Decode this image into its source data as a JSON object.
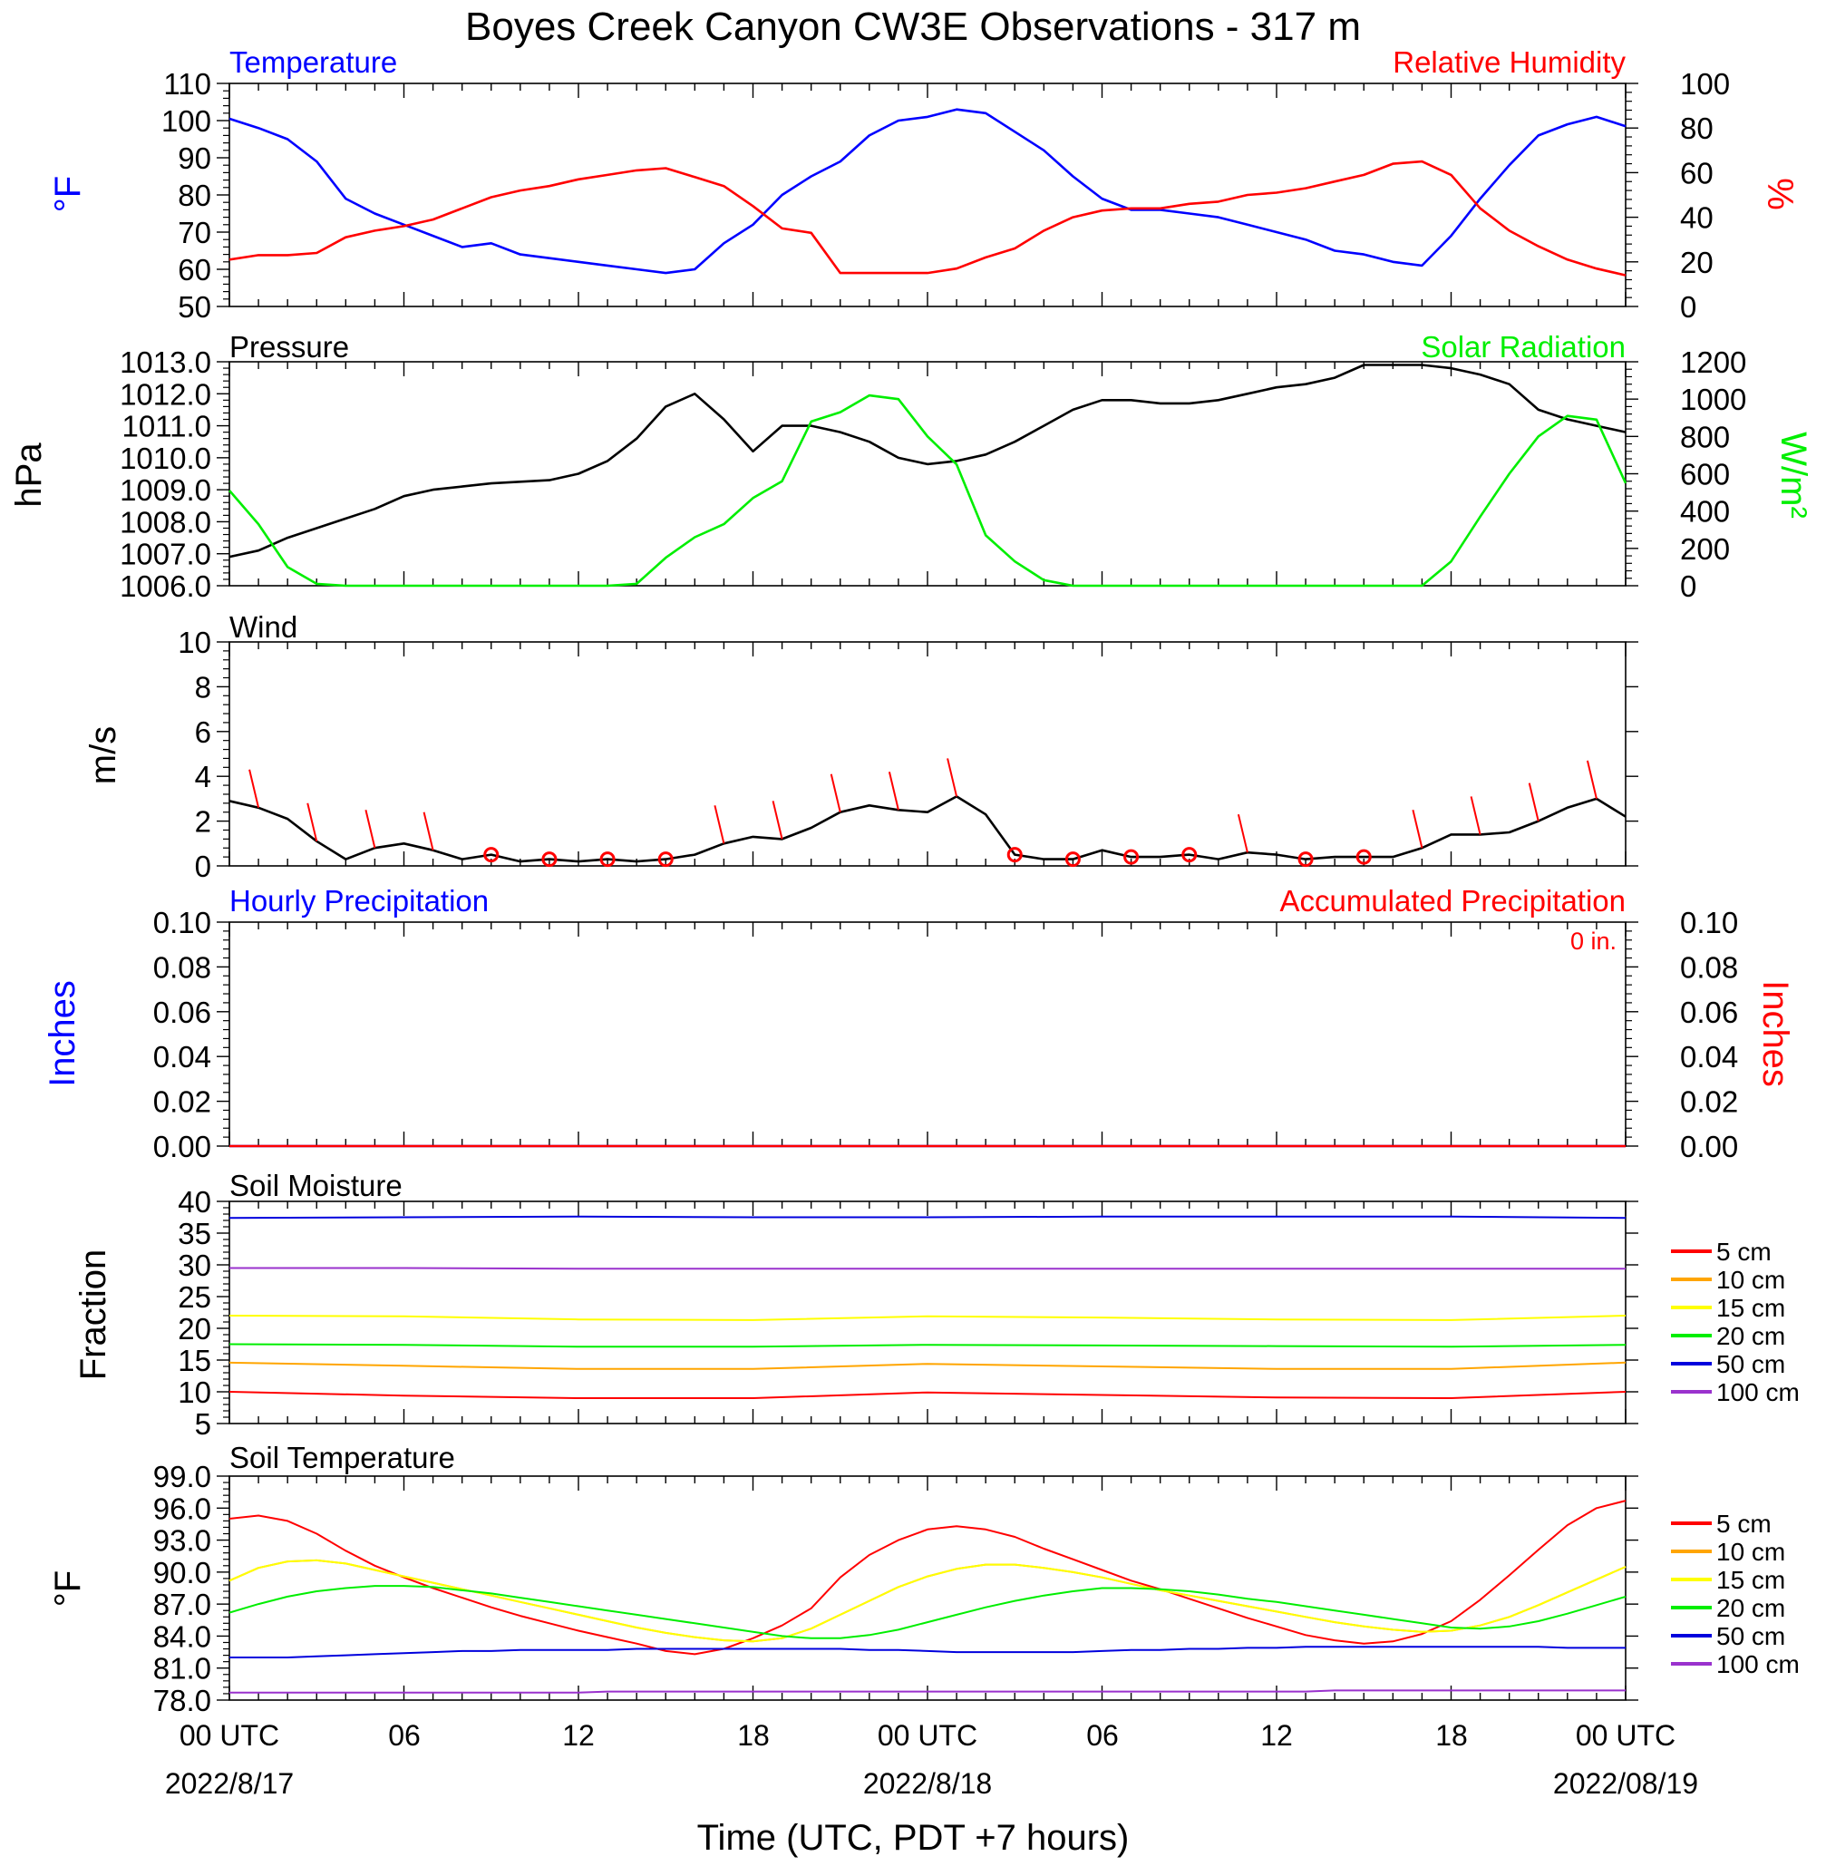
{
  "title": "Boyes Creek Canyon CW3E Observations - 317 m",
  "xlabel": "Time (UTC, PDT +7 hours)",
  "x_ticks": {
    "top": [
      "00 UTC",
      "06",
      "12",
      "18",
      "00 UTC",
      "06",
      "12",
      "18",
      "00 UTC"
    ],
    "dates": [
      "2022/8/17",
      "2022/8/18",
      "2022/08/19"
    ]
  },
  "colors": {
    "temperature": "#0000ff",
    "humidity": "#ff0000",
    "pressure": "#000000",
    "solar": "#00ee00",
    "wind": "#000000",
    "barb": "#ff0000",
    "hourly_precip": "#0000ff",
    "accum_precip": "#ff0000",
    "d5": "#ff0000",
    "d10": "#ffa500",
    "d15": "#ffff00",
    "d20": "#00ee00",
    "d50": "#0000dd",
    "d100": "#9a32cd"
  },
  "legend_labels": [
    "5 cm",
    "10 cm",
    "15 cm",
    "20 cm",
    "50 cm",
    "100 cm"
  ],
  "chart_data": [
    {
      "type": "line",
      "title_left": "Temperature",
      "title_right": "Relative Humidity",
      "ylabel_left": "°F",
      "ylabel_right": "%",
      "ylim_left": [
        50,
        110
      ],
      "yticks_left": [
        "50",
        "60",
        "70",
        "80",
        "90",
        "100",
        "110"
      ],
      "ylim_right": [
        0,
        100
      ],
      "yticks_right": [
        "0",
        "20",
        "40",
        "60",
        "80",
        "100"
      ],
      "x_hours": [
        0,
        1,
        2,
        3,
        4,
        5,
        6,
        7,
        8,
        9,
        10,
        11,
        12,
        13,
        14,
        15,
        16,
        17,
        18,
        19,
        20,
        21,
        22,
        23,
        24,
        25,
        26,
        27,
        28,
        29,
        30,
        31,
        32,
        33,
        34,
        35,
        36,
        37,
        38,
        39,
        40,
        41,
        42,
        43,
        44,
        45,
        46,
        47,
        48
      ],
      "series": [
        {
          "name": "Temperature",
          "axis": "left",
          "values": [
            100.5,
            98,
            95,
            89,
            79,
            75,
            72,
            69,
            66,
            67,
            64,
            63,
            62,
            61,
            60,
            59,
            60,
            67,
            72,
            80,
            85,
            89,
            96,
            100,
            101,
            103,
            102,
            97,
            92,
            85,
            79,
            76,
            76,
            75,
            74,
            72,
            70,
            68,
            65,
            64,
            62,
            61,
            69,
            79,
            88,
            96,
            99,
            101,
            98.5
          ]
        },
        {
          "name": "Relative Humidity",
          "axis": "right",
          "values": [
            21,
            23,
            23,
            24,
            31,
            34,
            36,
            39,
            44,
            49,
            52,
            54,
            57,
            59,
            61,
            62,
            58,
            54,
            45,
            35,
            33,
            15,
            15,
            15,
            15,
            17,
            22,
            26,
            34,
            40,
            43,
            44,
            44,
            46,
            47,
            50,
            51,
            53,
            56,
            59,
            64,
            65,
            59,
            44,
            34,
            27,
            21,
            17,
            14
          ]
        }
      ]
    },
    {
      "type": "line",
      "title_left": "Pressure",
      "title_right": "Solar Radiation",
      "ylabel_left": "hPa",
      "ylabel_right": "W/m²",
      "ylim_left": [
        1006.0,
        1013.0
      ],
      "yticks_left": [
        "1006.0",
        "1007.0",
        "1008.0",
        "1009.0",
        "1010.0",
        "1011.0",
        "1012.0",
        "1013.0"
      ],
      "ylim_right": [
        0,
        1200
      ],
      "yticks_right": [
        "0",
        "200",
        "400",
        "600",
        "800",
        "1000",
        "1200"
      ],
      "x_hours": [
        0,
        1,
        2,
        3,
        4,
        5,
        6,
        7,
        8,
        9,
        10,
        11,
        12,
        13,
        14,
        15,
        16,
        17,
        18,
        19,
        20,
        21,
        22,
        23,
        24,
        25,
        26,
        27,
        28,
        29,
        30,
        31,
        32,
        33,
        34,
        35,
        36,
        37,
        38,
        39,
        40,
        41,
        42,
        43,
        44,
        45,
        46,
        47,
        48
      ],
      "series": [
        {
          "name": "Pressure",
          "axis": "left",
          "values": [
            1006.9,
            1007.1,
            1007.5,
            1007.8,
            1008.1,
            1008.4,
            1008.8,
            1009.0,
            1009.1,
            1009.2,
            1009.25,
            1009.3,
            1009.5,
            1009.9,
            1010.6,
            1011.6,
            1012.0,
            1011.2,
            1010.2,
            1011.0,
            1011.0,
            1010.8,
            1010.5,
            1010.0,
            1009.8,
            1009.9,
            1010.1,
            1010.5,
            1011.0,
            1011.5,
            1011.8,
            1011.8,
            1011.7,
            1011.7,
            1011.8,
            1012.0,
            1012.2,
            1012.3,
            1012.5,
            1012.9,
            1012.9,
            1012.9,
            1012.8,
            1012.6,
            1012.3,
            1011.5,
            1011.2,
            1011.0,
            1010.8
          ]
        },
        {
          "name": "Solar Radiation",
          "axis": "right",
          "values": [
            510,
            330,
            100,
            10,
            0,
            0,
            0,
            0,
            0,
            0,
            0,
            0,
            0,
            0,
            10,
            150,
            260,
            330,
            470,
            560,
            880,
            930,
            1020,
            1000,
            800,
            650,
            270,
            130,
            30,
            0,
            0,
            0,
            0,
            0,
            0,
            0,
            0,
            0,
            0,
            0,
            0,
            0,
            130,
            370,
            600,
            800,
            910,
            890,
            550
          ]
        }
      ]
    },
    {
      "type": "line",
      "title_left": "Wind",
      "ylabel_left": "m/s",
      "ylim_left": [
        0,
        10
      ],
      "yticks_left": [
        "0",
        "2",
        "4",
        "6",
        "8",
        "10"
      ],
      "x_hours": [
        0,
        1,
        2,
        3,
        4,
        5,
        6,
        7,
        8,
        9,
        10,
        11,
        12,
        13,
        14,
        15,
        16,
        17,
        18,
        19,
        20,
        21,
        22,
        23,
        24,
        25,
        26,
        27,
        28,
        29,
        30,
        31,
        32,
        33,
        34,
        35,
        36,
        37,
        38,
        39,
        40,
        41,
        42,
        43,
        44,
        45,
        46,
        47,
        48
      ],
      "series": [
        {
          "name": "Wind Speed",
          "axis": "left",
          "values": [
            2.9,
            2.6,
            2.1,
            1.1,
            0.3,
            0.8,
            1.0,
            0.7,
            0.3,
            0.5,
            0.2,
            0.3,
            0.2,
            0.3,
            0.2,
            0.3,
            0.5,
            1.0,
            1.3,
            1.2,
            1.7,
            2.4,
            2.7,
            2.5,
            2.4,
            3.1,
            2.3,
            0.5,
            0.3,
            0.3,
            0.7,
            0.4,
            0.4,
            0.5,
            0.3,
            0.6,
            0.5,
            0.3,
            0.4,
            0.4,
            0.4,
            0.8,
            1.4,
            1.4,
            1.5,
            2.0,
            2.6,
            3.0,
            2.2
          ]
        }
      ]
    },
    {
      "type": "line",
      "title_left": "Hourly Precipitation",
      "title_right": "Accumulated Precipitation",
      "annotation": "0 in.",
      "ylabel_left": "Inches",
      "ylabel_right": "Inches",
      "ylim_left": [
        0,
        0.1
      ],
      "yticks_left": [
        "0.00",
        "0.02",
        "0.04",
        "0.06",
        "0.08",
        "0.10"
      ],
      "ylim_right": [
        0,
        0.1
      ],
      "yticks_right": [
        "0.00",
        "0.02",
        "0.04",
        "0.06",
        "0.08",
        "0.10"
      ],
      "x_hours": [
        0,
        48
      ],
      "series": [
        {
          "name": "Hourly Precipitation",
          "axis": "left",
          "values": [
            0,
            0
          ]
        },
        {
          "name": "Accumulated Precipitation",
          "axis": "right",
          "values": [
            0,
            0
          ]
        }
      ]
    },
    {
      "type": "line",
      "title_left": "Soil Moisture",
      "ylabel_left": "Fraction",
      "ylim_left": [
        5,
        40
      ],
      "yticks_left": [
        "5",
        "10",
        "15",
        "20",
        "25",
        "30",
        "35",
        "40"
      ],
      "x_hours": [
        0,
        6,
        12,
        18,
        24,
        30,
        36,
        42,
        48
      ],
      "series": [
        {
          "name": "5 cm",
          "values": [
            10.0,
            9.4,
            9.0,
            9.0,
            9.9,
            9.5,
            9.1,
            9.0,
            10.0
          ]
        },
        {
          "name": "10 cm",
          "values": [
            14.6,
            14.1,
            13.6,
            13.6,
            14.4,
            14.0,
            13.6,
            13.6,
            14.6
          ]
        },
        {
          "name": "15 cm",
          "values": [
            22.0,
            21.9,
            21.4,
            21.3,
            21.9,
            21.7,
            21.4,
            21.3,
            22.0
          ]
        },
        {
          "name": "20 cm",
          "values": [
            17.5,
            17.4,
            17.1,
            17.1,
            17.4,
            17.3,
            17.2,
            17.1,
            17.4
          ]
        },
        {
          "name": "50 cm",
          "values": [
            37.4,
            37.5,
            37.6,
            37.5,
            37.5,
            37.6,
            37.6,
            37.6,
            37.4
          ]
        },
        {
          "name": "100 cm",
          "values": [
            29.5,
            29.5,
            29.4,
            29.4,
            29.4,
            29.4,
            29.4,
            29.4,
            29.4
          ]
        }
      ]
    },
    {
      "type": "line",
      "title_left": "Soil Temperature",
      "ylabel_left": "°F",
      "ylim_left": [
        78.0,
        99.0
      ],
      "yticks_left": [
        "78.0",
        "81.0",
        "84.0",
        "87.0",
        "90.0",
        "93.0",
        "96.0",
        "99.0"
      ],
      "x_hours": [
        0,
        1,
        2,
        3,
        4,
        5,
        6,
        7,
        8,
        9,
        10,
        11,
        12,
        13,
        14,
        15,
        16,
        17,
        18,
        19,
        20,
        21,
        22,
        23,
        24,
        25,
        26,
        27,
        28,
        29,
        30,
        31,
        32,
        33,
        34,
        35,
        36,
        37,
        38,
        39,
        40,
        41,
        42,
        43,
        44,
        45,
        46,
        47,
        48
      ],
      "series": [
        {
          "name": "5 cm",
          "values": [
            95.0,
            95.3,
            94.8,
            93.6,
            92.0,
            90.6,
            89.5,
            88.5,
            87.6,
            86.7,
            85.9,
            85.2,
            84.5,
            83.9,
            83.3,
            82.6,
            82.3,
            82.8,
            83.8,
            85.0,
            86.6,
            89.5,
            91.6,
            93.0,
            94.0,
            94.3,
            94.0,
            93.3,
            92.2,
            91.2,
            90.2,
            89.2,
            88.4,
            87.5,
            86.6,
            85.7,
            84.9,
            84.1,
            83.6,
            83.3,
            83.5,
            84.2,
            85.4,
            87.4,
            89.7,
            92.1,
            94.4,
            96.0,
            96.7
          ]
        },
        {
          "name": "10 cm",
          "values": [
            89.2,
            90.4,
            91.0,
            91.1,
            90.8,
            90.2,
            89.6,
            89.0,
            88.4,
            87.8,
            87.2,
            86.6,
            86.0,
            85.4,
            84.8,
            84.3,
            83.9,
            83.6,
            83.5,
            83.8,
            84.7,
            86.0,
            87.3,
            88.6,
            89.6,
            90.3,
            90.7,
            90.7,
            90.4,
            90.0,
            89.5,
            88.9,
            88.3,
            87.8,
            87.3,
            86.8,
            86.3,
            85.8,
            85.3,
            84.9,
            84.6,
            84.4,
            84.5,
            85.0,
            85.8,
            86.9,
            88.1,
            89.3,
            90.5
          ]
        },
        {
          "name": "15 cm",
          "values": [
            89.2,
            90.4,
            91.0,
            91.1,
            90.8,
            90.2,
            89.6,
            89.0,
            88.4,
            87.8,
            87.2,
            86.6,
            86.0,
            85.4,
            84.8,
            84.3,
            83.9,
            83.6,
            83.5,
            83.8,
            84.7,
            86.0,
            87.3,
            88.6,
            89.6,
            90.3,
            90.7,
            90.7,
            90.4,
            90.0,
            89.5,
            88.9,
            88.3,
            87.8,
            87.3,
            86.8,
            86.3,
            85.8,
            85.3,
            84.9,
            84.6,
            84.4,
            84.5,
            85.0,
            85.8,
            86.9,
            88.1,
            89.3,
            90.5
          ]
        },
        {
          "name": "20 cm",
          "values": [
            86.2,
            87.0,
            87.7,
            88.2,
            88.5,
            88.7,
            88.7,
            88.6,
            88.3,
            88.0,
            87.6,
            87.2,
            86.8,
            86.4,
            86.0,
            85.6,
            85.2,
            84.8,
            84.4,
            84.0,
            83.8,
            83.8,
            84.1,
            84.6,
            85.3,
            86.0,
            86.7,
            87.3,
            87.8,
            88.2,
            88.5,
            88.5,
            88.4,
            88.2,
            87.9,
            87.5,
            87.2,
            86.8,
            86.4,
            86.0,
            85.6,
            85.2,
            84.8,
            84.7,
            84.9,
            85.4,
            86.1,
            86.9,
            87.7
          ]
        },
        {
          "name": "50 cm",
          "values": [
            82.0,
            82.0,
            82.0,
            82.1,
            82.2,
            82.3,
            82.4,
            82.5,
            82.6,
            82.6,
            82.7,
            82.7,
            82.7,
            82.7,
            82.8,
            82.8,
            82.8,
            82.8,
            82.8,
            82.8,
            82.8,
            82.8,
            82.7,
            82.7,
            82.6,
            82.5,
            82.5,
            82.5,
            82.5,
            82.5,
            82.6,
            82.7,
            82.7,
            82.8,
            82.8,
            82.9,
            82.9,
            83.0,
            83.0,
            83.0,
            83.0,
            83.0,
            83.0,
            83.0,
            83.0,
            83.0,
            82.9,
            82.9,
            82.9
          ]
        },
        {
          "name": "100 cm",
          "values": [
            78.7,
            78.7,
            78.7,
            78.7,
            78.7,
            78.7,
            78.7,
            78.7,
            78.7,
            78.7,
            78.7,
            78.7,
            78.7,
            78.8,
            78.8,
            78.8,
            78.8,
            78.8,
            78.8,
            78.8,
            78.8,
            78.8,
            78.8,
            78.8,
            78.8,
            78.8,
            78.8,
            78.8,
            78.8,
            78.8,
            78.8,
            78.8,
            78.8,
            78.8,
            78.8,
            78.8,
            78.8,
            78.8,
            78.9,
            78.9,
            78.9,
            78.9,
            78.9,
            78.9,
            78.9,
            78.9,
            78.9,
            78.9,
            78.9
          ]
        }
      ]
    }
  ]
}
